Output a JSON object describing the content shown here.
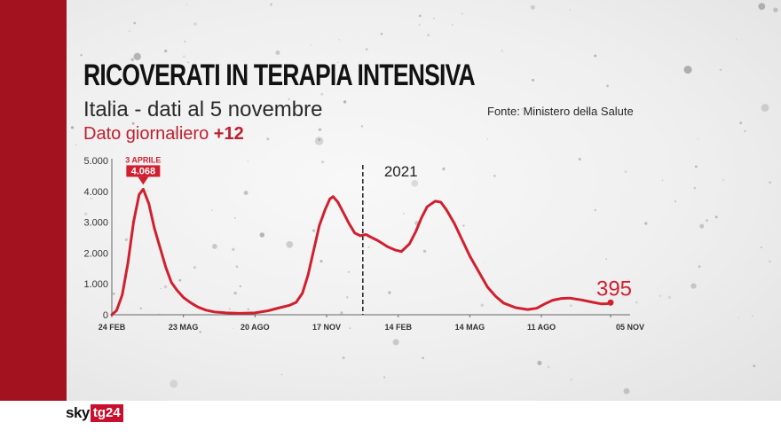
{
  "header": {
    "title": "RICOVERATI IN TERAPIA INTENSIVA",
    "subtitle": "Italia - dati al 5 novembre",
    "source": "Fonte: Ministero della Salute",
    "daily_label": "Dato giornaliero",
    "daily_value": "+12"
  },
  "brand": {
    "sky": "sky",
    "tg": "tg24"
  },
  "colors": {
    "accent": "#c8102e",
    "band": "#a3121f",
    "line": "#d0202f"
  },
  "chart_data": {
    "type": "line",
    "title": "RICOVERATI IN TERAPIA INTENSIVA",
    "ylim": [
      0,
      5000
    ],
    "yticks": [
      "0",
      "1.000",
      "2.000",
      "3.000",
      "4.000",
      "5.000"
    ],
    "ytick_values": [
      0,
      1000,
      2000,
      3000,
      4000,
      5000
    ],
    "xlim": [
      "2020-02-24",
      "2021-11-05"
    ],
    "xticks": [
      {
        "date": "2020-02-24",
        "label": "24 FEB"
      },
      {
        "date": "2020-05-23",
        "label": "23 MAG"
      },
      {
        "date": "2020-08-20",
        "label": "20 AGO"
      },
      {
        "date": "2020-11-17",
        "label": "17 NOV"
      },
      {
        "date": "2021-02-14",
        "label": "14 FEB"
      },
      {
        "date": "2021-05-14",
        "label": "14 MAG"
      },
      {
        "date": "2021-08-11",
        "label": "11 AGO"
      },
      {
        "date": "2021-11-05",
        "label": "05 NOV"
      }
    ],
    "year_marker": {
      "date": "2021-01-01",
      "label": "2021"
    },
    "peak_annotation": {
      "date_label": "3 APRILE",
      "value_label": "4.068",
      "date": "2020-04-03",
      "value": 4068
    },
    "last_annotation": {
      "value_label": "395",
      "date": "2021-11-05",
      "value": 395
    },
    "grid": false,
    "series": [
      {
        "points": [
          [
            "2020-02-24",
            0
          ],
          [
            "2020-03-01",
            140
          ],
          [
            "2020-03-08",
            650
          ],
          [
            "2020-03-15",
            1670
          ],
          [
            "2020-03-22",
            3010
          ],
          [
            "2020-03-29",
            3900
          ],
          [
            "2020-04-03",
            4068
          ],
          [
            "2020-04-10",
            3600
          ],
          [
            "2020-04-17",
            2800
          ],
          [
            "2020-04-24",
            2170
          ],
          [
            "2020-05-01",
            1550
          ],
          [
            "2020-05-08",
            1050
          ],
          [
            "2020-05-15",
            800
          ],
          [
            "2020-05-23",
            560
          ],
          [
            "2020-06-01",
            390
          ],
          [
            "2020-06-10",
            250
          ],
          [
            "2020-06-20",
            150
          ],
          [
            "2020-07-01",
            90
          ],
          [
            "2020-07-15",
            60
          ],
          [
            "2020-08-01",
            45
          ],
          [
            "2020-08-20",
            60
          ],
          [
            "2020-09-05",
            130
          ],
          [
            "2020-09-20",
            230
          ],
          [
            "2020-10-01",
            300
          ],
          [
            "2020-10-10",
            400
          ],
          [
            "2020-10-18",
            700
          ],
          [
            "2020-10-25",
            1300
          ],
          [
            "2020-11-01",
            2100
          ],
          [
            "2020-11-08",
            2900
          ],
          [
            "2020-11-15",
            3400
          ],
          [
            "2020-11-21",
            3750
          ],
          [
            "2020-11-25",
            3830
          ],
          [
            "2020-12-01",
            3650
          ],
          [
            "2020-12-08",
            3300
          ],
          [
            "2020-12-15",
            2950
          ],
          [
            "2020-12-22",
            2650
          ],
          [
            "2020-12-29",
            2560
          ],
          [
            "2021-01-05",
            2600
          ],
          [
            "2021-01-10",
            2530
          ],
          [
            "2021-01-20",
            2400
          ],
          [
            "2021-02-01",
            2200
          ],
          [
            "2021-02-10",
            2100
          ],
          [
            "2021-02-18",
            2050
          ],
          [
            "2021-02-28",
            2300
          ],
          [
            "2021-03-08",
            2700
          ],
          [
            "2021-03-15",
            3150
          ],
          [
            "2021-03-22",
            3500
          ],
          [
            "2021-04-01",
            3680
          ],
          [
            "2021-04-08",
            3650
          ],
          [
            "2021-04-15",
            3400
          ],
          [
            "2021-04-25",
            2950
          ],
          [
            "2021-05-05",
            2400
          ],
          [
            "2021-05-14",
            1900
          ],
          [
            "2021-05-25",
            1400
          ],
          [
            "2021-06-05",
            900
          ],
          [
            "2021-06-15",
            600
          ],
          [
            "2021-06-25",
            380
          ],
          [
            "2021-07-10",
            230
          ],
          [
            "2021-07-25",
            170
          ],
          [
            "2021-08-05",
            210
          ],
          [
            "2021-08-15",
            350
          ],
          [
            "2021-08-25",
            470
          ],
          [
            "2021-09-05",
            530
          ],
          [
            "2021-09-15",
            540
          ],
          [
            "2021-09-30",
            480
          ],
          [
            "2021-10-15",
            400
          ],
          [
            "2021-10-25",
            350
          ],
          [
            "2021-11-01",
            360
          ],
          [
            "2021-11-05",
            395
          ]
        ]
      }
    ]
  }
}
